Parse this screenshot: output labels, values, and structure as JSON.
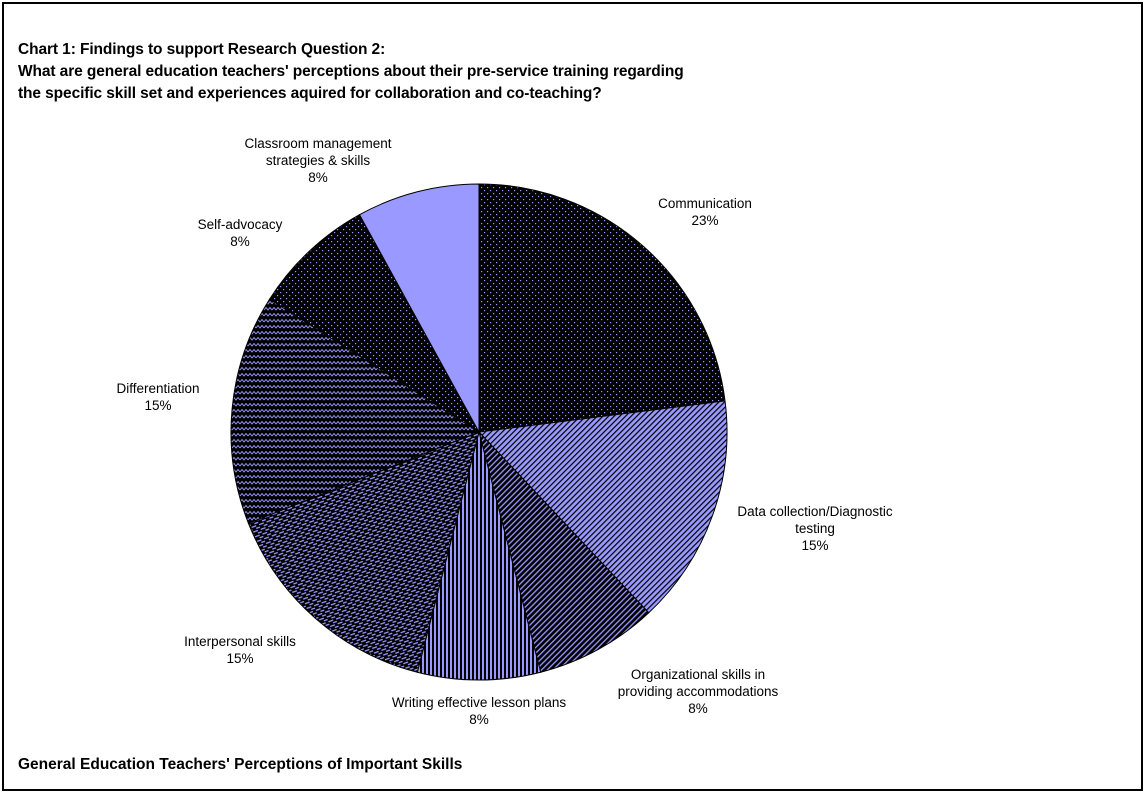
{
  "header": {
    "title_lines": [
      "Chart 1: Findings to support Research Question 2:",
      "What are general education teachers' perceptions about their pre-service training regarding",
      "the specific skill set and experiences aquired for collaboration and co-teaching?"
    ]
  },
  "footer": {
    "title": "General Education Teachers' Perceptions of Important Skills"
  },
  "chart_data": {
    "type": "pie",
    "start": "12 o'clock",
    "direction": "clockwise",
    "slices": [
      {
        "label_lines": [
          "Communication"
        ],
        "value": 23,
        "value_label": "23%",
        "pattern": "dots-on-black",
        "color": "#000000"
      },
      {
        "label_lines": [
          "Data collection/Diagnostic",
          "testing"
        ],
        "value": 15,
        "value_label": "15%",
        "pattern": "diagonal-lavender",
        "color": "#9999ff"
      },
      {
        "label_lines": [
          "Organizational skills in",
          "providing accommodations"
        ],
        "value": 8,
        "value_label": "8%",
        "pattern": "diagonal-dark",
        "color": "#000000"
      },
      {
        "label_lines": [
          "Writing effective lesson plans"
        ],
        "value": 8,
        "value_label": "8%",
        "pattern": "vertical-stripes",
        "color": "#9999ff"
      },
      {
        "label_lines": [
          "Interpersonal skills"
        ],
        "value": 15,
        "value_label": "15%",
        "pattern": "horizontal-dashes",
        "color": "#000000"
      },
      {
        "label_lines": [
          "Differentiation"
        ],
        "value": 15,
        "value_label": "15%",
        "pattern": "zigzag",
        "color": "#9999ff"
      },
      {
        "label_lines": [
          "Self-advocacy"
        ],
        "value": 8,
        "value_label": "8%",
        "pattern": "dots-on-black",
        "color": "#000000"
      },
      {
        "label_lines": [
          "Classroom management",
          "strategies & skills"
        ],
        "value": 8,
        "value_label": "8%",
        "pattern": "solid",
        "color": "#9999ff"
      }
    ]
  }
}
